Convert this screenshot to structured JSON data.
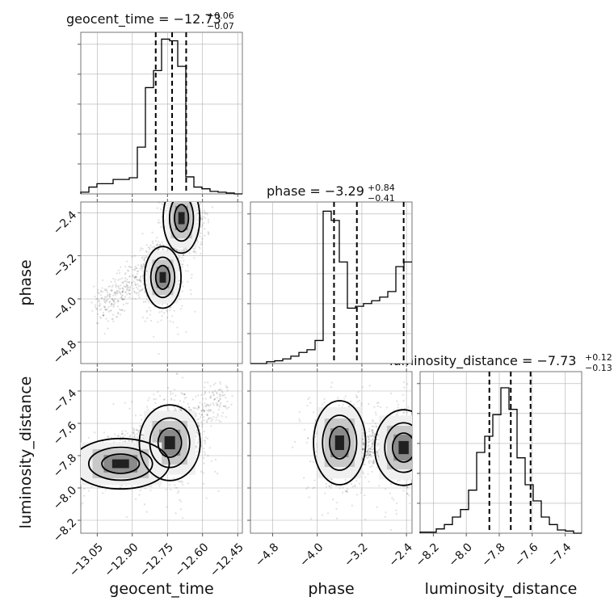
{
  "chart_data": {
    "type": "corner",
    "parameters": [
      {
        "key": "geocent_time",
        "xlabel": "geocent_time",
        "ylabel": "",
        "title_main": "geocent_time = −12.73",
        "title_sup": "+0.06",
        "title_sub": "−0.07",
        "median": -12.73,
        "q16": -12.8,
        "q84": -12.67,
        "xlim": [
          -13.12,
          -12.43
        ],
        "ticks": [
          -13.05,
          -12.9,
          -12.75,
          -12.6,
          -12.45
        ],
        "ticklabels": [
          "−13.05",
          "−12.90",
          "−12.75",
          "−12.60",
          "−12.45"
        ],
        "hist_edges_start": -13.12,
        "hist_bin_width": 0.0345,
        "hist_counts": [
          2,
          8,
          12,
          12,
          17,
          17,
          19,
          55,
          125,
          145,
          182,
          180,
          150,
          20,
          8,
          6,
          3,
          2,
          1,
          0
        ],
        "hist_max": 190
      },
      {
        "key": "phase",
        "xlabel": "phase",
        "ylabel": "phase",
        "title_main": "phase = −3.29",
        "title_sup": "+0.84",
        "title_sub": "−0.41",
        "median": -3.29,
        "q16": -3.7,
        "q84": -2.45,
        "xlim": [
          -5.2,
          -2.3
        ],
        "ticks": [
          -4.8,
          -4.0,
          -3.2,
          -2.4
        ],
        "ticklabels": [
          "−4.8",
          "−4.0",
          "−3.2",
          "−2.4"
        ],
        "hist_edges_start": -5.2,
        "hist_bin_width": 0.145,
        "hist_counts": [
          0,
          0,
          2,
          3,
          5,
          8,
          12,
          15,
          25,
          165,
          155,
          110,
          60,
          62,
          65,
          68,
          72,
          78,
          105,
          110
        ],
        "hist_max": 175
      },
      {
        "key": "luminosity_distance",
        "xlabel": "luminosity_distance",
        "ylabel": "luminosity_distance",
        "title_main": "luminosity_distance = −7.73",
        "title_sup": "+0.12",
        "title_sub": "−0.13",
        "median": -7.73,
        "q16": -7.86,
        "q84": -7.61,
        "xlim": [
          -8.28,
          -7.3
        ],
        "ticks": [
          -8.2,
          -8.0,
          -7.8,
          -7.6,
          -7.4
        ],
        "ticklabels": [
          "−8.2",
          "−8.0",
          "−7.8",
          "−7.6",
          "−7.4"
        ],
        "hist_edges_start": -8.28,
        "hist_bin_width": 0.049,
        "hist_counts": [
          1,
          1,
          4,
          8,
          15,
          22,
          40,
          75,
          90,
          110,
          135,
          115,
          70,
          45,
          30,
          15,
          8,
          3,
          2,
          0
        ],
        "hist_max": 150
      }
    ],
    "ylims": {
      "phase": [
        -5.2,
        -2.2
      ],
      "luminosity_distance": [
        -8.28,
        -7.28
      ]
    },
    "yticks": {
      "phase": [
        -2.4,
        -3.2,
        -4.0,
        -4.8
      ],
      "phase_labels": [
        "−2.4",
        "−3.2",
        "−4.0",
        "−4.8"
      ],
      "luminosity_distance": [
        -7.4,
        -7.6,
        -7.8,
        -8.0,
        -8.2
      ],
      "luminosity_distance_labels": [
        "−7.4",
        "−7.6",
        "−7.8",
        "−8.0",
        "−8.2"
      ]
    },
    "grid": true,
    "pairs": [
      {
        "x": "geocent_time",
        "y": "phase",
        "modes": [
          {
            "cx": -12.77,
            "cy": -3.6,
            "sx": 0.03,
            "sy": 0.22,
            "w": 0.55
          },
          {
            "cx": -12.69,
            "cy": -2.5,
            "sx": 0.03,
            "sy": 0.25,
            "w": 0.45
          }
        ],
        "ridge": {
          "x0": -13.05,
          "y0": -4.2,
          "x1": -12.6,
          "y1": -2.6
        }
      },
      {
        "x": "geocent_time",
        "y": "luminosity_distance",
        "modes": [
          {
            "cx": -12.74,
            "cy": -7.72,
            "sx": 0.05,
            "sy": 0.09,
            "w": 0.7
          },
          {
            "cx": -12.95,
            "cy": -7.85,
            "sx": 0.08,
            "sy": 0.06,
            "w": 0.3
          }
        ],
        "ridge": {
          "x0": -13.05,
          "y0": -7.85,
          "x1": -12.5,
          "y1": -7.45
        }
      },
      {
        "x": "phase",
        "y": "luminosity_distance",
        "modes": [
          {
            "cx": -3.6,
            "cy": -7.72,
            "sx": 0.18,
            "sy": 0.1,
            "w": 0.55
          },
          {
            "cx": -2.45,
            "cy": -7.75,
            "sx": 0.2,
            "sy": 0.09,
            "w": 0.45
          }
        ],
        "ridge": {
          "x0": -3.8,
          "y0": -7.75,
          "x1": -2.4,
          "y1": -7.75
        }
      }
    ]
  }
}
